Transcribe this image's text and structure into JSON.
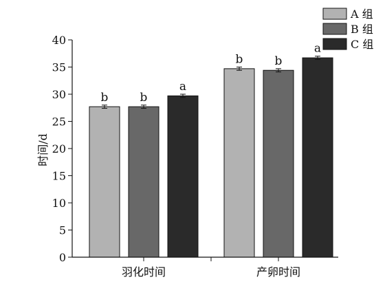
{
  "chart_data": {
    "type": "bar",
    "categories": [
      "羽化时间",
      "产卵时间"
    ],
    "series": [
      {
        "name": "A 组",
        "color": "#b2b2b2",
        "values": [
          27.7,
          34.7
        ],
        "errors": [
          0.3,
          0.3
        ],
        "labels": [
          "b",
          "b"
        ]
      },
      {
        "name": "B 组",
        "color": "#686868",
        "values": [
          27.7,
          34.4
        ],
        "errors": [
          0.3,
          0.3
        ],
        "labels": [
          "b",
          "b"
        ]
      },
      {
        "name": "C 组",
        "color": "#2a2a2a",
        "values": [
          29.7,
          36.7
        ],
        "errors": [
          0.3,
          0.3
        ],
        "labels": [
          "a",
          "a"
        ]
      }
    ],
    "ylabel": "时间/d",
    "xlabel": "",
    "ylim": [
      0,
      40
    ],
    "yticks": [
      0,
      5,
      10,
      15,
      20,
      25,
      30,
      35,
      40
    ],
    "grid": false,
    "legend_position": "top-right"
  }
}
